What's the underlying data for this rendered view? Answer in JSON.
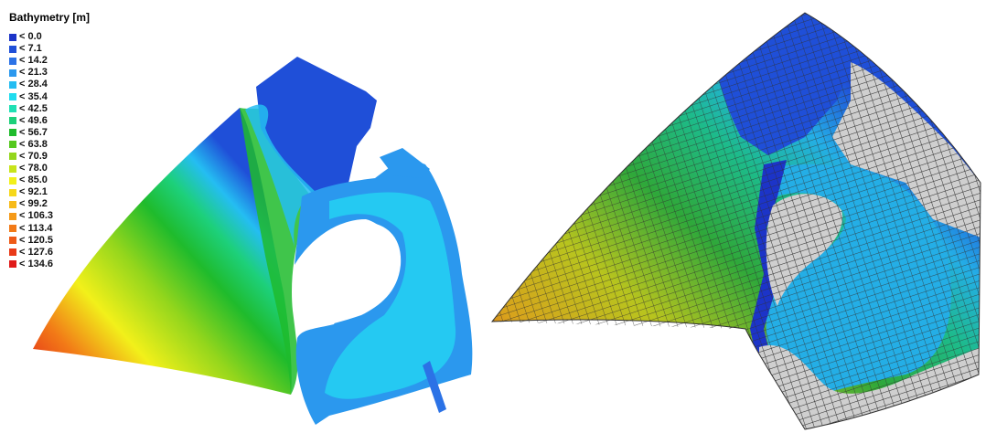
{
  "legend": {
    "title": "Bathymetry [m]",
    "items": [
      {
        "label": "< 0.0",
        "color": "#1c34c8"
      },
      {
        "label": "< 7.1",
        "color": "#1f4fd8"
      },
      {
        "label": "< 14.2",
        "color": "#2b72e6"
      },
      {
        "label": "< 21.3",
        "color": "#2b98ee"
      },
      {
        "label": "< 28.4",
        "color": "#24bdf2"
      },
      {
        "label": "< 35.4",
        "color": "#1fdcef"
      },
      {
        "label": "< 42.5",
        "color": "#1fe0b4"
      },
      {
        "label": "< 49.6",
        "color": "#1dd07a"
      },
      {
        "label": "< 56.7",
        "color": "#1fbb2c"
      },
      {
        "label": "< 63.8",
        "color": "#55c91e"
      },
      {
        "label": "< 70.9",
        "color": "#94d61c"
      },
      {
        "label": "< 78.0",
        "color": "#c8e41b"
      },
      {
        "label": "< 85.0",
        "color": "#f2f01a"
      },
      {
        "label": "< 92.1",
        "color": "#f6d81a"
      },
      {
        "label": "< 99.2",
        "color": "#f7bb19"
      },
      {
        "label": "< 106.3",
        "color": "#f59a18"
      },
      {
        "label": "< 113.4",
        "color": "#f27a17"
      },
      {
        "label": "< 120.5",
        "color": "#ee5a17"
      },
      {
        "label": "< 127.6",
        "color": "#e93a18"
      },
      {
        "label": "< 134.6",
        "color": "#e01a19"
      }
    ]
  },
  "colors": {
    "land_mesh": "#c8c8c8",
    "mesh_line": "#3a3a3a"
  }
}
